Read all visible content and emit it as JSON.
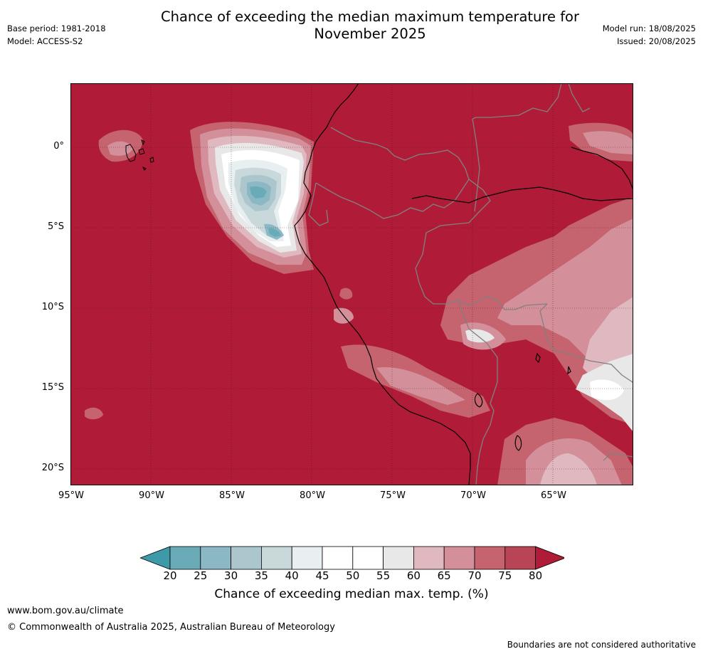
{
  "title_line1": "Chance of exceeding the median maximum temperature for",
  "title_line2": "November 2025",
  "meta_left": {
    "base_period": "Base period: 1981-2018",
    "model": "Model: ACCESS-S2"
  },
  "meta_right": {
    "model_run": "Model run: 18/08/2025",
    "issued": "Issued: 20/08/2025"
  },
  "map": {
    "lat_labels": [
      "0°",
      "5°S",
      "10°S",
      "15°S",
      "20°S"
    ],
    "lon_labels": [
      "95°W",
      "90°W",
      "85°W",
      "80°W",
      "75°W",
      "70°W",
      "65°W"
    ],
    "lat_range": [
      -21,
      4
    ],
    "lon_range": [
      -95,
      -60
    ]
  },
  "colorbar": {
    "ticks": [
      "20",
      "25",
      "30",
      "35",
      "40",
      "45",
      "50",
      "55",
      "60",
      "65",
      "70",
      "75",
      "80"
    ],
    "colors": [
      "#3e9aa8",
      "#6aabb8",
      "#8bb8c4",
      "#abc6cc",
      "#c9d8da",
      "#e8eff1",
      "#ffffff",
      "#ffffff",
      "#e8e8e8",
      "#e0b8bf",
      "#d4909a",
      "#c5636f",
      "#b84556",
      "#b01c38"
    ],
    "title": "Chance of exceeding median max. temp. (%)"
  },
  "footer": {
    "url": "www.bom.gov.au/climate",
    "copyright": "© Commonwealth of Australia 2025, Australian Bureau of Meteorology",
    "note": "Boundaries are not considered authoritative"
  }
}
